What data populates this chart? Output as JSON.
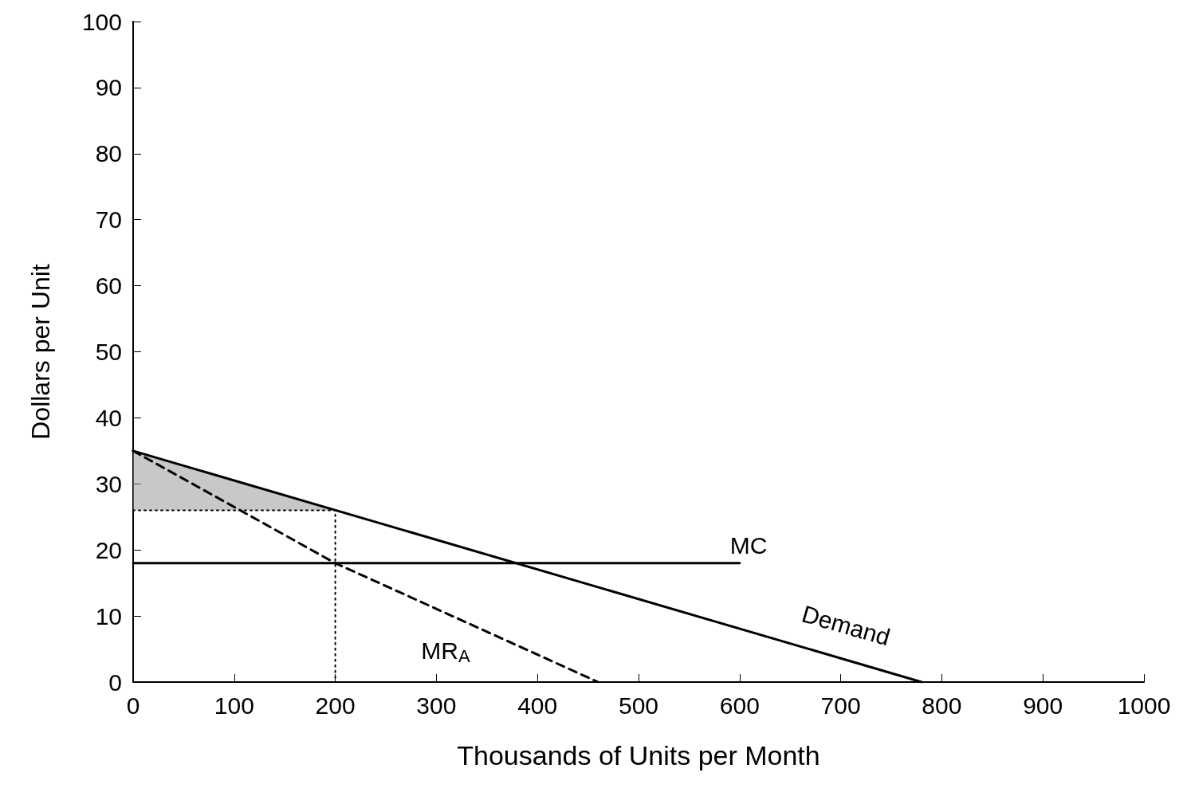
{
  "chart_data": {
    "type": "line",
    "xlabel": "Thousands of Units per Month",
    "ylabel": "Dollars per Unit",
    "xlim": [
      0,
      1000
    ],
    "xticks": [
      0,
      100,
      200,
      300,
      400,
      500,
      600,
      700,
      800,
      900,
      1000
    ],
    "ylim": [
      0,
      100
    ],
    "yticks": [
      0,
      10,
      20,
      30,
      40,
      50,
      60,
      70,
      80,
      90,
      100
    ],
    "grid": false,
    "series": [
      {
        "name": "Demand",
        "color": "#000000",
        "x": [
          0,
          780
        ],
        "values": [
          35,
          0
        ],
        "line_style": "solid"
      },
      {
        "name": "MC",
        "color": "#000000",
        "x": [
          0,
          600
        ],
        "values": [
          18,
          18
        ],
        "line_style": "solid"
      },
      {
        "name": "MR$_{A}$",
        "color": "#000000",
        "x": [
          0,
          200,
          460
        ],
        "values": [
          35,
          18,
          0
        ],
        "line_style": "dashed"
      },
      {
        "type": "area",
        "color": "#9a9a9a",
        "x": [
          0,
          200,
          0
        ],
        "values": [
          35,
          26,
          26
        ]
      },
      {
        "color": "#000000",
        "x": [
          0,
          200,
          200
        ],
        "values": [
          26,
          26,
          0
        ],
        "line_style": "dotted"
      }
    ]
  }
}
